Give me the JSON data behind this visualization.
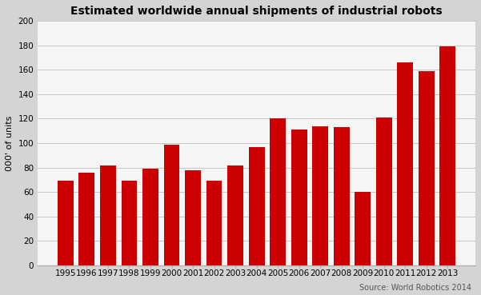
{
  "title": "Estimated worldwide annual shipments of industrial robots",
  "ylabel": "000' of units",
  "source_text": "Source: World Robotics 2014",
  "background_color": "#d4d4d4",
  "plot_background_color": "#f5f5f5",
  "bar_color": "#cc0000",
  "years": [
    "1995",
    "1996",
    "1997",
    "1998",
    "1999",
    "2000",
    "2001",
    "2002",
    "2003",
    "2004",
    "2005",
    "2006",
    "2007",
    "2008",
    "2009",
    "2010",
    "2011",
    "2012",
    "2013"
  ],
  "values": [
    69,
    76,
    82,
    69,
    79,
    99,
    78,
    69,
    82,
    97,
    120,
    111,
    114,
    113,
    60,
    121,
    166,
    159,
    179
  ],
  "ylim": [
    0,
    200
  ],
  "yticks": [
    0,
    20,
    40,
    60,
    80,
    100,
    120,
    140,
    160,
    180,
    200
  ],
  "title_fontsize": 10,
  "ylabel_fontsize": 8,
  "tick_fontsize": 7.5,
  "source_fontsize": 7
}
